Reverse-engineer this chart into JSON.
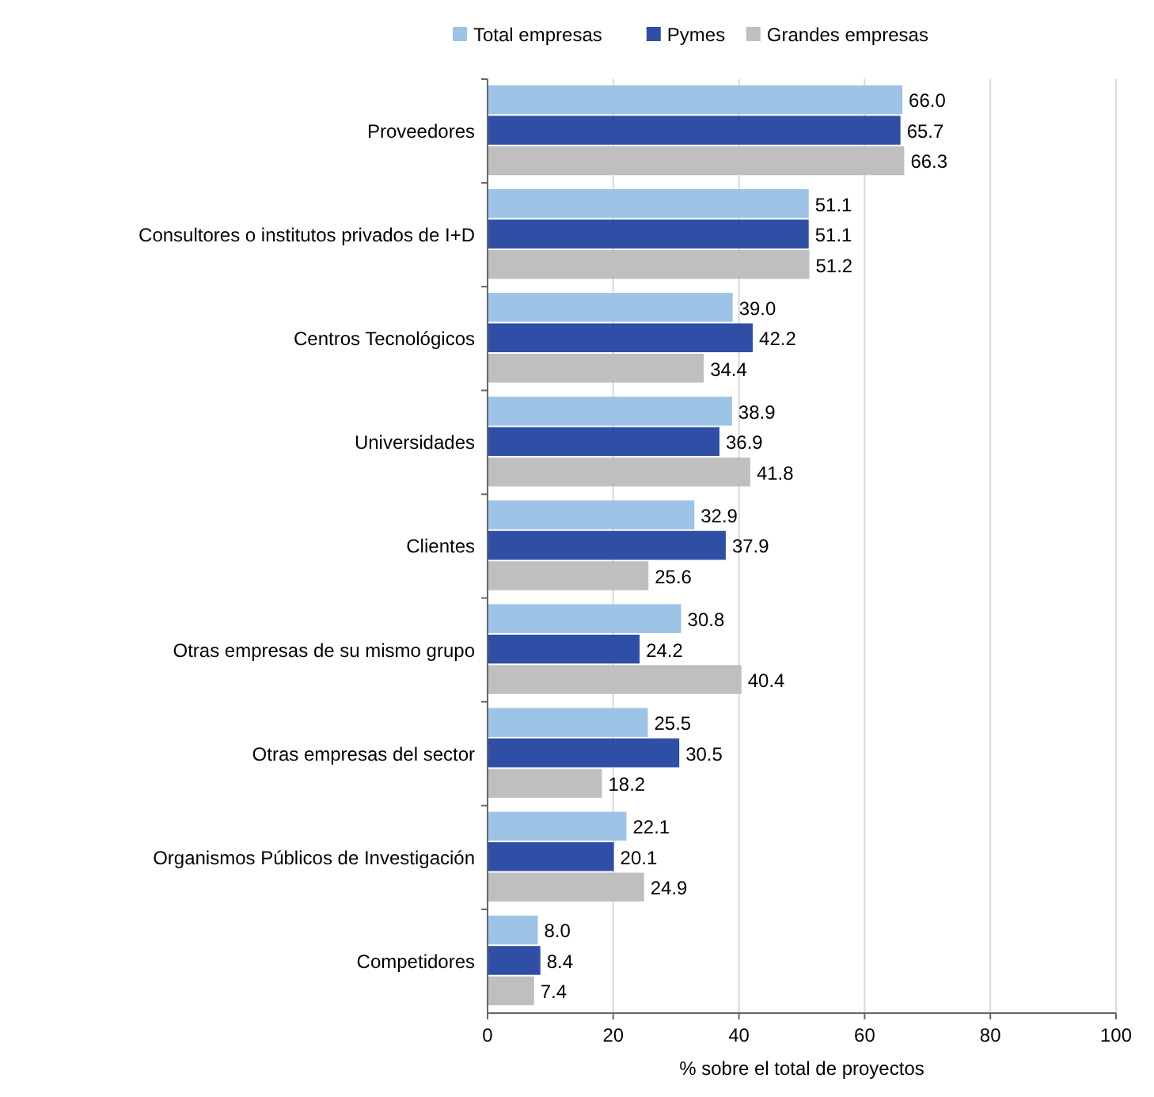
{
  "chart_data": {
    "type": "bar",
    "orientation": "horizontal",
    "xlabel": "% sobre el total de proyectos",
    "categories": [
      "Proveedores",
      "Consultores o institutos privados de I+D",
      "Centros Tecnológicos",
      "Universidades",
      "Clientes",
      "Otras empresas de su mismo grupo",
      "Otras empresas del sector",
      "Organismos Públicos de Investigación",
      "Competidores"
    ],
    "series": [
      {
        "name": "Total empresas",
        "color": "#9dc3e6",
        "values": [
          66.0,
          51.1,
          39.0,
          38.9,
          32.9,
          30.8,
          25.5,
          22.1,
          8.0
        ],
        "value_labels": [
          "66.0",
          "51.1",
          "39.0",
          "38.9",
          "32.9",
          "30.8",
          "25.5",
          "22.1",
          "8.0"
        ]
      },
      {
        "name": "Pymes",
        "color": "#2f4fa6",
        "values": [
          65.7,
          51.1,
          42.2,
          36.9,
          37.9,
          24.2,
          30.5,
          20.1,
          8.4
        ],
        "value_labels": [
          "65.7",
          "51.1",
          "42.2",
          "36.9",
          "37.9",
          "24.2",
          "30.5",
          "20.1",
          "8.4"
        ]
      },
      {
        "name": "Grandes empresas",
        "color": "#bfbfbf",
        "values": [
          66.3,
          51.2,
          34.4,
          41.8,
          25.6,
          40.4,
          18.2,
          24.9,
          7.4
        ],
        "value_labels": [
          "66.3",
          "51.2",
          "34.4",
          "41.8",
          "25.6",
          "40.4",
          "18.2",
          "24.9",
          "7.4"
        ]
      }
    ],
    "xlim": [
      0,
      100
    ],
    "xticks": [
      0,
      20,
      40,
      60,
      80,
      100
    ],
    "grid": "x",
    "legend": "top"
  }
}
